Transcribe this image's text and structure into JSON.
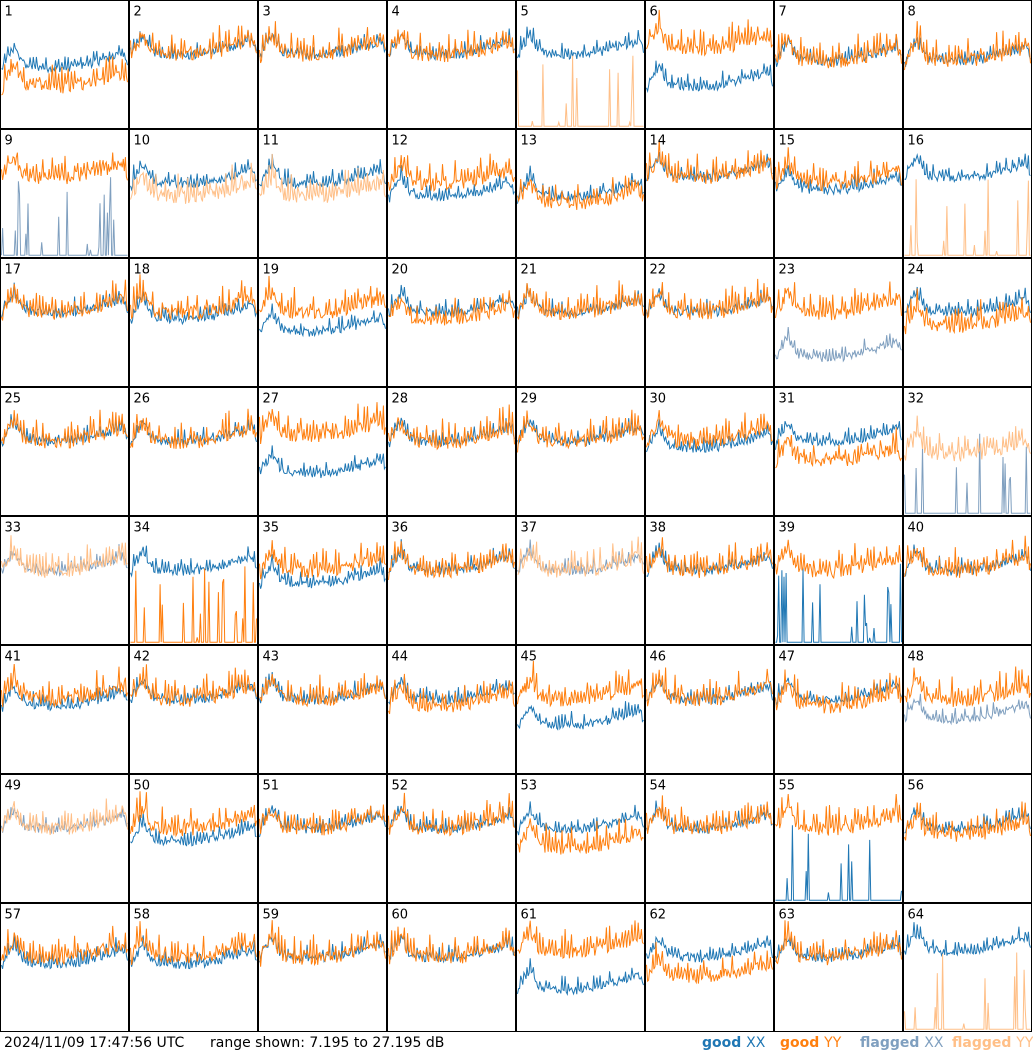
{
  "footer": {
    "timestamp": "2024/11/09 17:47:56 UTC",
    "range_text": "range shown: 7.195 to 27.195 dB"
  },
  "legend": {
    "good_xx": {
      "word": "good",
      "pol": "XX",
      "color": "#1f77b4"
    },
    "good_yy": {
      "word": "good",
      "pol": "YY",
      "color": "#ff7f0e"
    },
    "flagged_xx": {
      "word": "flagged",
      "pol": "XX",
      "color": "#7f9fbf"
    },
    "flagged_yy": {
      "word": "flagged",
      "pol": "YY",
      "color": "#ffbf87"
    }
  },
  "chart_data": {
    "type": "line",
    "grid": "8x8 small multiples",
    "ylim": [
      7.195,
      27.195
    ],
    "yunit": "dB",
    "series_names": [
      "good XX",
      "good YY",
      "flagged XX",
      "flagged YY"
    ],
    "panels": [
      {
        "id": "1",
        "xx": "good",
        "yy": "good",
        "xx_level": 17,
        "yy_level": 14,
        "note": "YY dips low early"
      },
      {
        "id": "2",
        "xx": "good",
        "yy": "good",
        "xx_level": 19,
        "yy_level": 19
      },
      {
        "id": "3",
        "xx": "good",
        "yy": "good",
        "xx_level": 19,
        "yy_level": 19
      },
      {
        "id": "4",
        "xx": "good",
        "yy": "good",
        "xx_level": 19,
        "yy_level": 19
      },
      {
        "id": "5",
        "xx": "good",
        "yy": "flagged",
        "xx_level": 19,
        "yy_level": 8,
        "note": "YY spikes near floor"
      },
      {
        "id": "6",
        "xx": "good",
        "yy": "good",
        "xx_level": 14,
        "yy_level": 20,
        "note": "XX deep dip"
      },
      {
        "id": "7",
        "xx": "good",
        "yy": "good",
        "xx_level": 18,
        "yy_level": 18
      },
      {
        "id": "8",
        "xx": "good",
        "yy": "good",
        "xx_level": 18,
        "yy_level": 18
      },
      {
        "id": "9",
        "xx": "flagged",
        "yy": "good",
        "xx_level": 8,
        "yy_level": 20,
        "note": "XX spikes near floor"
      },
      {
        "id": "10",
        "xx": "good",
        "yy": "flagged",
        "xx_level": 19,
        "yy_level": 17
      },
      {
        "id": "11",
        "xx": "good",
        "yy": "flagged",
        "xx_level": 19,
        "yy_level": 17
      },
      {
        "id": "12",
        "xx": "good",
        "yy": "good",
        "xx_level": 17,
        "yy_level": 19
      },
      {
        "id": "13",
        "xx": "good",
        "yy": "good",
        "xx_level": 17,
        "yy_level": 16
      },
      {
        "id": "14",
        "xx": "good",
        "yy": "good",
        "xx_level": 20,
        "yy_level": 20
      },
      {
        "id": "15",
        "xx": "good",
        "yy": "good",
        "xx_level": 18,
        "yy_level": 19
      },
      {
        "id": "16",
        "xx": "good",
        "yy": "flagged",
        "xx_level": 20,
        "yy_level": 8
      },
      {
        "id": "17",
        "xx": "good",
        "yy": "good",
        "xx_level": 19,
        "yy_level": 19
      },
      {
        "id": "18",
        "xx": "good",
        "yy": "good",
        "xx_level": 18,
        "yy_level": 19
      },
      {
        "id": "19",
        "xx": "good",
        "yy": "good",
        "xx_level": 16,
        "yy_level": 19
      },
      {
        "id": "20",
        "xx": "good",
        "yy": "good",
        "xx_level": 19,
        "yy_level": 18
      },
      {
        "id": "21",
        "xx": "good",
        "yy": "good",
        "xx_level": 19,
        "yy_level": 19
      },
      {
        "id": "22",
        "xx": "good",
        "yy": "good",
        "xx_level": 19,
        "yy_level": 19
      },
      {
        "id": "23",
        "xx": "flagged",
        "yy": "good",
        "xx_level": 12,
        "yy_level": 19,
        "note": "XX noisy low"
      },
      {
        "id": "24",
        "xx": "good",
        "yy": "good",
        "xx_level": 19,
        "yy_level": 17
      },
      {
        "id": "25",
        "xx": "good",
        "yy": "good",
        "xx_level": 19,
        "yy_level": 19
      },
      {
        "id": "26",
        "xx": "good",
        "yy": "good",
        "xx_level": 19,
        "yy_level": 19
      },
      {
        "id": "27",
        "xx": "good",
        "yy": "good",
        "xx_level": 14,
        "yy_level": 20,
        "note": "XX deep dip"
      },
      {
        "id": "28",
        "xx": "good",
        "yy": "good",
        "xx_level": 19,
        "yy_level": 19
      },
      {
        "id": "29",
        "xx": "good",
        "yy": "good",
        "xx_level": 19,
        "yy_level": 19
      },
      {
        "id": "30",
        "xx": "good",
        "yy": "good",
        "xx_level": 18,
        "yy_level": 19
      },
      {
        "id": "31",
        "xx": "good",
        "yy": "good",
        "xx_level": 19,
        "yy_level": 16
      },
      {
        "id": "32",
        "xx": "flagged",
        "yy": "flagged",
        "xx_level": 8,
        "yy_level": 17
      },
      {
        "id": "33",
        "xx": "flagged",
        "yy": "flagged",
        "xx_level": 19,
        "yy_level": 19
      },
      {
        "id": "34",
        "xx": "good",
        "yy": "good",
        "xx_level": 19,
        "yy_level": 8,
        "note": "YY spikes near floor"
      },
      {
        "id": "35",
        "xx": "good",
        "yy": "good",
        "xx_level": 17,
        "yy_level": 19
      },
      {
        "id": "36",
        "xx": "good",
        "yy": "good",
        "xx_level": 19,
        "yy_level": 19
      },
      {
        "id": "37",
        "xx": "flagged",
        "yy": "flagged",
        "xx_level": 19,
        "yy_level": 19
      },
      {
        "id": "38",
        "xx": "good",
        "yy": "good",
        "xx_level": 19,
        "yy_level": 19
      },
      {
        "id": "39",
        "xx": "good",
        "yy": "good",
        "xx_level": 8,
        "yy_level": 19,
        "note": "XX spikes near floor"
      },
      {
        "id": "40",
        "xx": "good",
        "yy": "good",
        "xx_level": 19,
        "yy_level": 19
      },
      {
        "id": "41",
        "xx": "good",
        "yy": "good",
        "xx_level": 18,
        "yy_level": 19
      },
      {
        "id": "42",
        "xx": "good",
        "yy": "good",
        "xx_level": 19,
        "yy_level": 19
      },
      {
        "id": "43",
        "xx": "good",
        "yy": "good",
        "xx_level": 19,
        "yy_level": 19
      },
      {
        "id": "44",
        "xx": "good",
        "yy": "good",
        "xx_level": 19,
        "yy_level": 18
      },
      {
        "id": "45",
        "xx": "good",
        "yy": "good",
        "xx_level": 15,
        "yy_level": 19
      },
      {
        "id": "46",
        "xx": "good",
        "yy": "good",
        "xx_level": 19,
        "yy_level": 19
      },
      {
        "id": "47",
        "xx": "good",
        "yy": "good",
        "xx_level": 19,
        "yy_level": 18
      },
      {
        "id": "48",
        "xx": "flagged",
        "yy": "good",
        "xx_level": 16,
        "yy_level": 19
      },
      {
        "id": "49",
        "xx": "flagged",
        "yy": "flagged",
        "xx_level": 19,
        "yy_level": 19
      },
      {
        "id": "50",
        "xx": "good",
        "yy": "good",
        "xx_level": 17,
        "yy_level": 19
      },
      {
        "id": "51",
        "xx": "good",
        "yy": "good",
        "xx_level": 19,
        "yy_level": 19
      },
      {
        "id": "52",
        "xx": "good",
        "yy": "good",
        "xx_level": 19,
        "yy_level": 19
      },
      {
        "id": "53",
        "xx": "good",
        "yy": "good",
        "xx_level": 19,
        "yy_level": 16
      },
      {
        "id": "54",
        "xx": "good",
        "yy": "good",
        "xx_level": 19,
        "yy_level": 19
      },
      {
        "id": "55",
        "xx": "good",
        "yy": "good",
        "xx_level": 8,
        "yy_level": 19,
        "note": "XX spikes near floor"
      },
      {
        "id": "56",
        "xx": "good",
        "yy": "good",
        "xx_level": 19,
        "yy_level": 18
      },
      {
        "id": "57",
        "xx": "good",
        "yy": "good",
        "xx_level": 18,
        "yy_level": 19
      },
      {
        "id": "58",
        "xx": "good",
        "yy": "good",
        "xx_level": 18,
        "yy_level": 19
      },
      {
        "id": "59",
        "xx": "good",
        "yy": "good",
        "xx_level": 19,
        "yy_level": 19
      },
      {
        "id": "60",
        "xx": "good",
        "yy": "good",
        "xx_level": 19,
        "yy_level": 19
      },
      {
        "id": "61",
        "xx": "good",
        "yy": "good",
        "xx_level": 14,
        "yy_level": 20,
        "note": "XX deep dip"
      },
      {
        "id": "62",
        "xx": "good",
        "yy": "good",
        "xx_level": 19,
        "yy_level": 16
      },
      {
        "id": "63",
        "xx": "good",
        "yy": "good",
        "xx_level": 19,
        "yy_level": 19
      },
      {
        "id": "64",
        "xx": "good",
        "yy": "flagged",
        "xx_level": 20,
        "yy_level": 8
      }
    ]
  }
}
